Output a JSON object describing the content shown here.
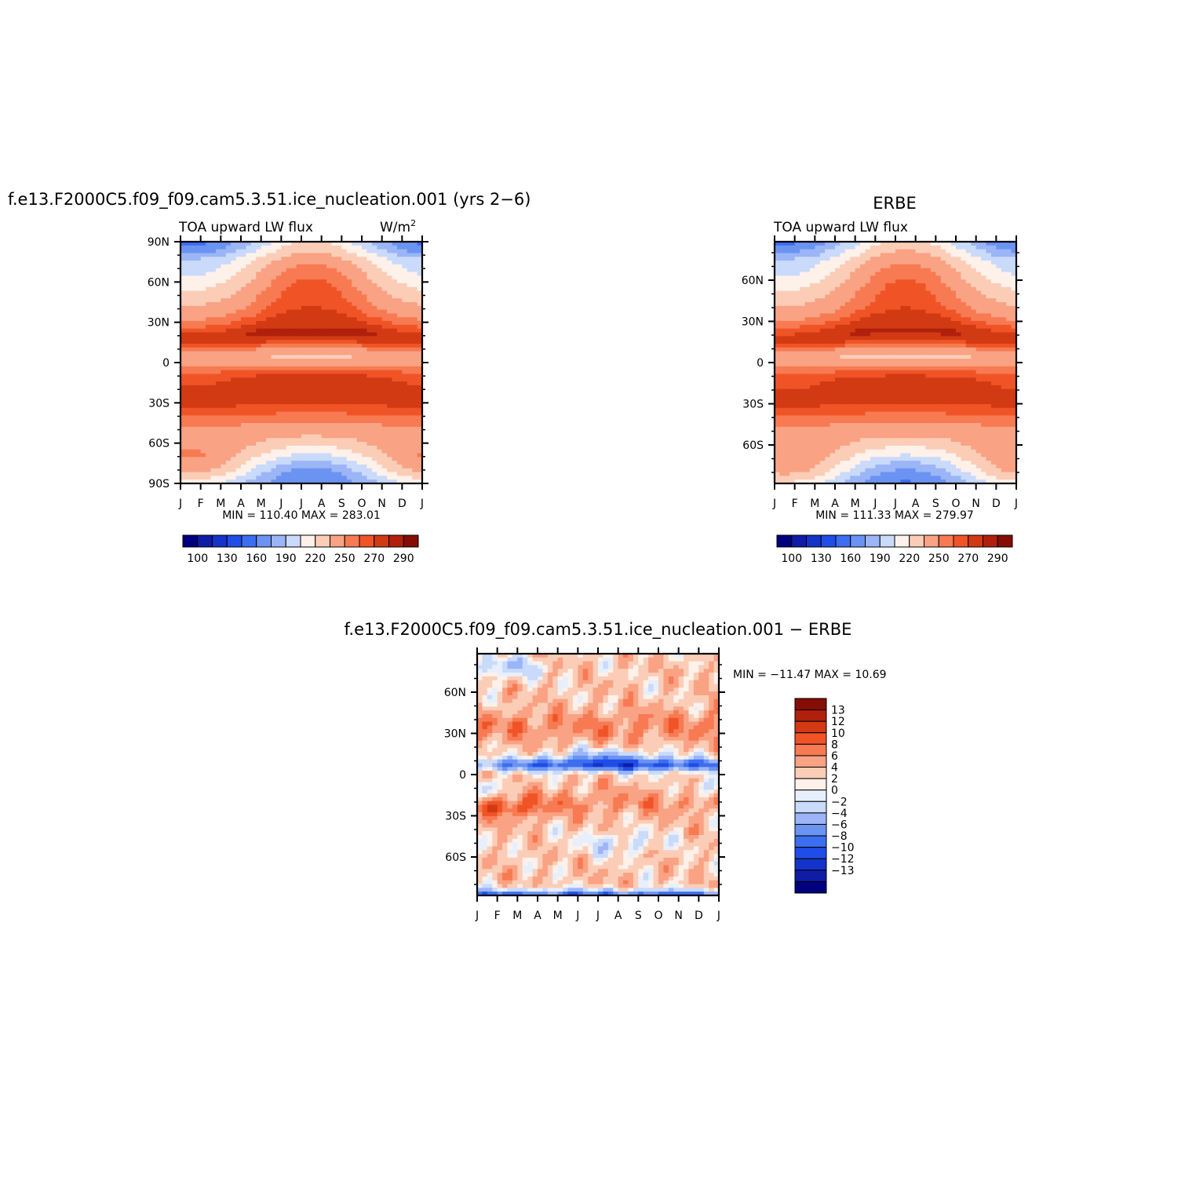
{
  "chart_data": [
    {
      "id": "model",
      "type": "heatmap",
      "title": "f.e13.F2000C5.f09_f09.cam5.3.51.ice_nucleation.001 (yrs 2−6)",
      "subtitle_left": "TOA upward LW flux",
      "subtitle_right_base": "W/m",
      "subtitle_right_sup": "2",
      "x_ticks": [
        "J",
        "F",
        "M",
        "A",
        "M",
        "J",
        "J",
        "A",
        "S",
        "O",
        "N",
        "D",
        "J"
      ],
      "y_ticks": [
        "90N",
        "60N",
        "30N",
        "0",
        "30S",
        "60S",
        "90S"
      ],
      "ylim": [
        -90,
        90
      ],
      "stats_text": "MIN = 110.40 MAX = 283.01",
      "min": 110.4,
      "max": 283.01,
      "colorbar_labels": [
        "100",
        "130",
        "160",
        "190",
        "220",
        "250",
        "270",
        "290"
      ]
    },
    {
      "id": "obs",
      "type": "heatmap",
      "title": "ERBE",
      "subtitle_left": "TOA upward LW flux",
      "x_ticks": [
        "J",
        "F",
        "M",
        "A",
        "M",
        "J",
        "J",
        "A",
        "S",
        "O",
        "N",
        "D",
        "J"
      ],
      "y_ticks": [
        "60N",
        "30N",
        "0",
        "30S",
        "60S"
      ],
      "ylim": [
        -88,
        88
      ],
      "stats_text": "MIN = 111.33 MAX = 279.97",
      "min": 111.33,
      "max": 279.97,
      "colorbar_labels": [
        "100",
        "130",
        "160",
        "190",
        "220",
        "250",
        "270",
        "290"
      ]
    },
    {
      "id": "diff",
      "type": "heatmap",
      "title": "f.e13.F2000C5.f09_f09.cam5.3.51.ice_nucleation.001 − ERBE",
      "x_ticks": [
        "J",
        "F",
        "M",
        "A",
        "M",
        "J",
        "J",
        "A",
        "S",
        "O",
        "N",
        "D",
        "J"
      ],
      "y_ticks": [
        "60N",
        "30N",
        "0",
        "30S",
        "60S"
      ],
      "ylim": [
        -88,
        88
      ],
      "stats_text": "MIN = −11.47 MAX = 10.69",
      "min": -11.47,
      "max": 10.69,
      "colorbar_labels": [
        "13",
        "12",
        "10",
        "8",
        "6",
        "4",
        "2",
        "0",
        "−2",
        "−4",
        "−6",
        "−8",
        "−10",
        "−12",
        "−13"
      ]
    }
  ],
  "colors": {
    "scale": [
      "#00007f",
      "#0f1ca5",
      "#1433c8",
      "#1f4de6",
      "#3d6ef0",
      "#6b93f2",
      "#9bb5f6",
      "#c9dafa",
      "#fdf1ea",
      "#fbcdb7",
      "#f9a284",
      "#f77a52",
      "#f05426",
      "#d23a14",
      "#b0200d",
      "#860c06"
    ],
    "diff_scale": [
      "#00007f",
      "#0f1ca5",
      "#1433c8",
      "#1f4de6",
      "#3d6ef0",
      "#6b93f2",
      "#9bb5f6",
      "#c9dafa",
      "#e7effc",
      "#fdf1ea",
      "#fbcdb7",
      "#f9a284",
      "#f77a52",
      "#f05426",
      "#d23a14",
      "#b0200d",
      "#860c06"
    ]
  }
}
